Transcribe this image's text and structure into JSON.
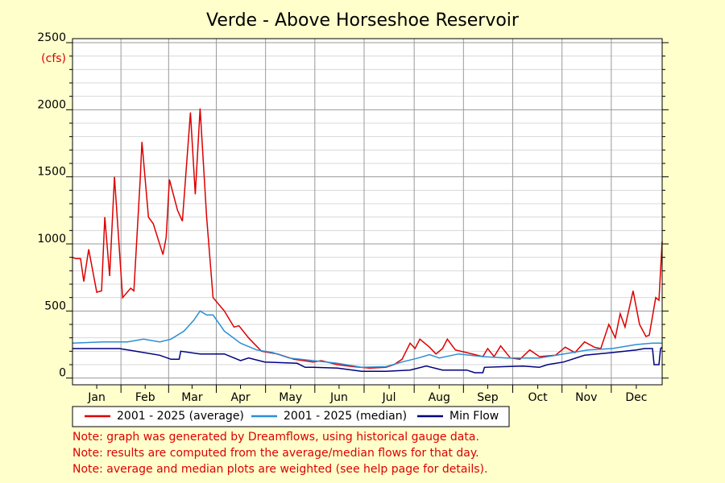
{
  "chart_data": {
    "type": "line",
    "title": "Verde - Above Horseshoe Reservoir",
    "ylabel": "(cfs)",
    "xlim": [
      1,
      366
    ],
    "xticks": [
      {
        "value": 16,
        "label": "Jan"
      },
      {
        "value": 46,
        "label": "Feb"
      },
      {
        "value": 75,
        "label": "Mar"
      },
      {
        "value": 105,
        "label": "Apr"
      },
      {
        "value": 136,
        "label": "May"
      },
      {
        "value": 166,
        "label": "Jun"
      },
      {
        "value": 197,
        "label": "Jul"
      },
      {
        "value": 228,
        "label": "Aug"
      },
      {
        "value": 258,
        "label": "Sep"
      },
      {
        "value": 289,
        "label": "Oct"
      },
      {
        "value": 319,
        "label": "Nov"
      },
      {
        "value": 350,
        "label": "Dec"
      }
    ],
    "ylim": [
      -50,
      2530
    ],
    "yticks": [
      0,
      500,
      1000,
      1500,
      2000,
      2500
    ],
    "yticks_minor": [
      100,
      200,
      300,
      400,
      600,
      700,
      800,
      900,
      1100,
      1200,
      1300,
      1400,
      1600,
      1700,
      1800,
      1900,
      2100,
      2200,
      2300,
      2400
    ],
    "grid": true,
    "series": [
      {
        "name": "2001 - 2025 (average)",
        "color": "#dd0000",
        "x": [
          1,
          3,
          6,
          8,
          11,
          16,
          19,
          21,
          24,
          27,
          32,
          37,
          39,
          43,
          44,
          48,
          51,
          57,
          59,
          61,
          66,
          69,
          74,
          77,
          80,
          84,
          88,
          95,
          101,
          104,
          110,
          118,
          128,
          138,
          150,
          155,
          165,
          175,
          185,
          195,
          200,
          205,
          210,
          213,
          216,
          222,
          226,
          230,
          233,
          238,
          245,
          255,
          258,
          262,
          266,
          272,
          278,
          284,
          290,
          300,
          306,
          312,
          318,
          324,
          328,
          333,
          337,
          340,
          343,
          348,
          352,
          356,
          358,
          362,
          364,
          366
        ],
        "values": [
          900,
          890,
          890,
          720,
          960,
          640,
          650,
          1200,
          760,
          1500,
          600,
          670,
          650,
          1500,
          1760,
          1200,
          1150,
          920,
          1050,
          1480,
          1250,
          1170,
          1980,
          1370,
          2010,
          1200,
          600,
          500,
          380,
          390,
          300,
          200,
          180,
          140,
          120,
          130,
          100,
          85,
          75,
          80,
          100,
          140,
          260,
          220,
          290,
          230,
          180,
          220,
          290,
          210,
          190,
          160,
          220,
          160,
          240,
          150,
          140,
          210,
          160,
          170,
          230,
          190,
          270,
          230,
          220,
          400,
          300,
          480,
          380,
          650,
          400,
          310,
          320,
          600,
          580,
          1020
        ]
      },
      {
        "name": "2001 - 2025 (median)",
        "color": "#2a8fd6",
        "x": [
          1,
          20,
          35,
          45,
          55,
          62,
          70,
          76,
          80,
          84,
          88,
          95,
          105,
          115,
          125,
          135,
          150,
          165,
          180,
          195,
          205,
          215,
          222,
          228,
          240,
          255,
          270,
          290,
          305,
          320,
          335,
          350,
          360,
          366
        ],
        "values": [
          260,
          270,
          270,
          290,
          270,
          290,
          350,
          430,
          500,
          470,
          470,
          350,
          260,
          210,
          190,
          150,
          130,
          110,
          80,
          85,
          120,
          150,
          175,
          150,
          180,
          160,
          150,
          150,
          180,
          210,
          220,
          250,
          260,
          260
        ]
      },
      {
        "name": "Min Flow",
        "color": "#000080",
        "x": [
          1,
          15,
          30,
          40,
          55,
          62,
          67,
          68,
          80,
          95,
          105,
          110,
          120,
          140,
          145,
          150,
          165,
          180,
          195,
          210,
          220,
          230,
          245,
          250,
          255,
          256,
          280,
          290,
          295,
          305,
          318,
          335,
          350,
          355,
          360,
          361,
          364,
          365,
          366
        ],
        "values": [
          220,
          220,
          220,
          200,
          170,
          140,
          140,
          200,
          180,
          180,
          130,
          150,
          120,
          110,
          80,
          80,
          75,
          50,
          50,
          60,
          90,
          60,
          60,
          40,
          40,
          80,
          90,
          80,
          100,
          120,
          170,
          190,
          210,
          220,
          220,
          100,
          100,
          220,
          230
        ]
      }
    ],
    "notes": [
      "Note: graph was generated by Dreamflows, using historical gauge data.",
      "Note: results are computed from the average/median flows for that day.",
      "Note: average and median plots are weighted (see help page for details)."
    ]
  }
}
